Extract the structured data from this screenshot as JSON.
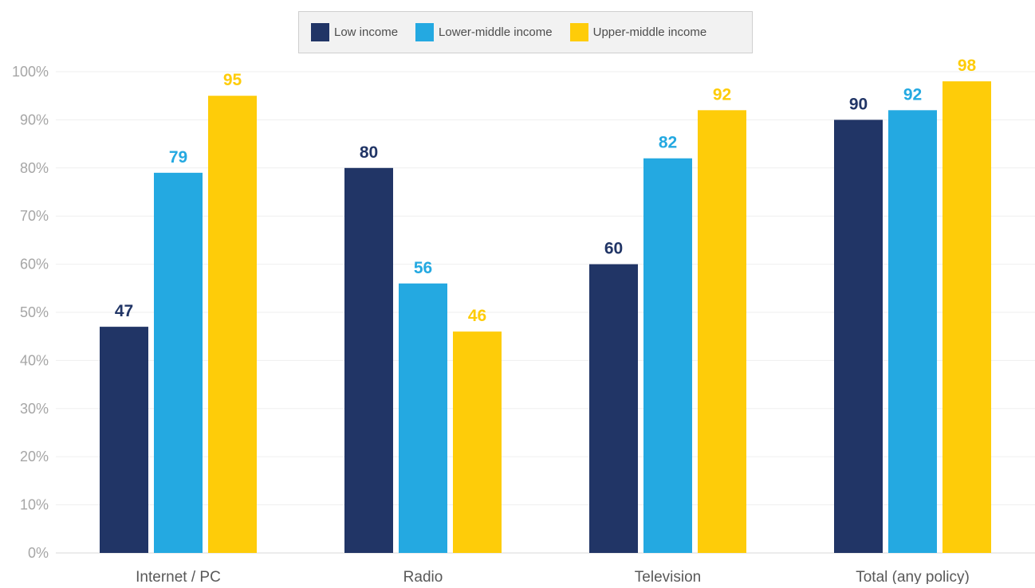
{
  "chart_data": {
    "type": "bar",
    "categories": [
      "Internet / PC",
      "Radio",
      "Television",
      "Total (any policy)"
    ],
    "series": [
      {
        "name": "Low income",
        "color": "#213566",
        "values": [
          47,
          80,
          60,
          90
        ]
      },
      {
        "name": "Lower-middle income",
        "color": "#24a9e1",
        "values": [
          79,
          56,
          82,
          92
        ]
      },
      {
        "name": "Upper-middle income",
        "color": "#fecc09",
        "values": [
          95,
          46,
          92,
          98
        ]
      }
    ],
    "ylim": [
      0,
      100
    ],
    "yticks": [
      "0%",
      "10%",
      "20%",
      "30%",
      "40%",
      "50%",
      "60%",
      "70%",
      "80%",
      "90%",
      "100%"
    ],
    "grid": true,
    "legend_position": "top-center"
  }
}
